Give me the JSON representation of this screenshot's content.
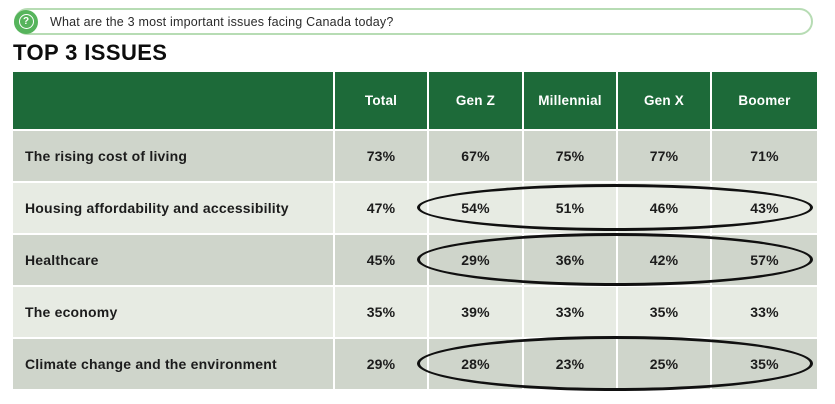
{
  "question_banner": {
    "icon": "question-help-icon",
    "question_mark": "?",
    "text": "What are the 3 most important issues facing Canada today?"
  },
  "page_title": "TOP 3 ISSUES",
  "table": {
    "columns": [
      "",
      "Total",
      "Gen Z",
      "Millennial",
      "Gen X",
      "Boomer"
    ],
    "rows": [
      {
        "label": "The rising cost of living",
        "values": [
          "73%",
          "67%",
          "75%",
          "77%",
          "71%"
        ],
        "circled": false
      },
      {
        "label": "Housing affordability and accessibility",
        "values": [
          "47%",
          "54%",
          "51%",
          "46%",
          "43%"
        ],
        "circled": true
      },
      {
        "label": "Healthcare",
        "values": [
          "45%",
          "29%",
          "36%",
          "42%",
          "57%"
        ],
        "circled": true
      },
      {
        "label": "The economy",
        "values": [
          "35%",
          "39%",
          "33%",
          "35%",
          "33%"
        ],
        "circled": false
      },
      {
        "label": "Climate change and the environment",
        "values": [
          "29%",
          "28%",
          "23%",
          "25%",
          "35%"
        ],
        "circled": true
      }
    ]
  },
  "chart_data": {
    "type": "table",
    "title": "TOP 3 ISSUES",
    "question": "What are the 3 most important issues facing Canada today?",
    "columns": [
      "Total",
      "Gen Z",
      "Millennial",
      "Gen X",
      "Boomer"
    ],
    "unit": "%",
    "rows": [
      {
        "issue": "The rising cost of living",
        "values": [
          73,
          67,
          75,
          77,
          71
        ]
      },
      {
        "issue": "Housing affordability and accessibility",
        "values": [
          47,
          54,
          51,
          46,
          43
        ]
      },
      {
        "issue": "Healthcare",
        "values": [
          45,
          29,
          36,
          42,
          57
        ]
      },
      {
        "issue": "The economy",
        "values": [
          35,
          39,
          33,
          35,
          33
        ]
      },
      {
        "issue": "Climate change and the environment",
        "values": [
          29,
          28,
          23,
          25,
          35
        ]
      }
    ],
    "annotations": [
      "Hand-drawn ellipse circles Gen Z–Boomer values for Housing affordability and accessibility",
      "Hand-drawn ellipse circles Gen Z–Boomer values for Healthcare",
      "Hand-drawn ellipse circles Gen Z–Boomer values for Climate change and the environment"
    ]
  },
  "colors": {
    "header_green": "#1d6a39",
    "row_dark": "#cfd5cb",
    "row_light": "#e7ebe3",
    "banner_border": "#b7dcb4",
    "icon_green": "#56b45c",
    "circle_stroke": "#101010",
    "text": "#1c1c1c"
  }
}
